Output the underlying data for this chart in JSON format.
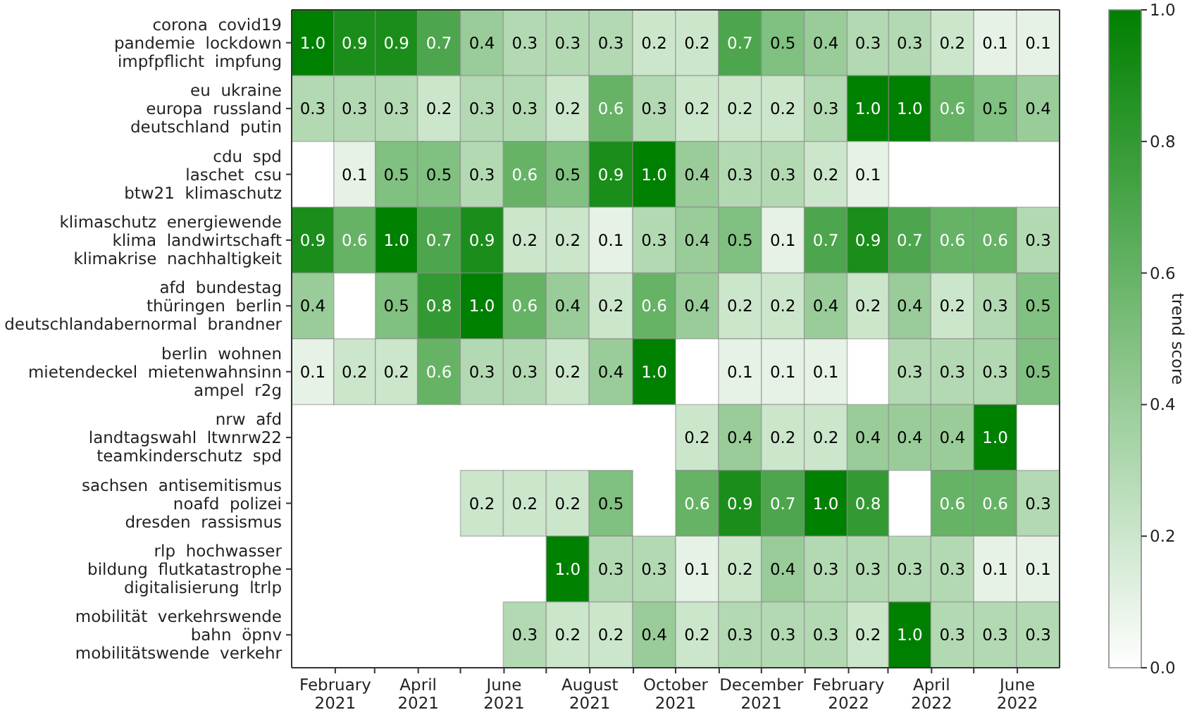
{
  "chart_data": {
    "type": "heatmap",
    "clabel": "trend score",
    "data_labels": true,
    "x": [
      "2021-01-16",
      "2021-02-15",
      "2021-03-16",
      "2021-04-16",
      "2021-05-16",
      "2021-06-16",
      "2021-07-16",
      "2021-08-16",
      "2021-09-16",
      "2021-10-16",
      "2021-11-16",
      "2021-12-16",
      "2022-01-16",
      "2022-02-15",
      "2022-03-16",
      "2022-04-16",
      "2022-05-16",
      "2022-06-16"
    ],
    "xlim": [
      "2021-01-01",
      "2022-07-01"
    ],
    "cell_labels": [
      [
        "1.0",
        "0.9",
        "0.9",
        "0.7",
        "0.4",
        "0.3",
        "0.3",
        "0.3",
        "0.2",
        "0.2",
        "0.7",
        "0.5",
        "0.4",
        "0.3",
        "0.3",
        "0.2",
        "0.1",
        "0.1"
      ],
      [
        "0.3",
        "0.3",
        "0.3",
        "0.2",
        "0.3",
        "0.3",
        "0.2",
        "0.6",
        "0.3",
        "0.2",
        "0.2",
        "0.2",
        "0.3",
        "1.0",
        "1.0",
        "0.6",
        "0.5",
        "0.4"
      ],
      [
        null,
        "0.1",
        "0.5",
        "0.5",
        "0.3",
        "0.6",
        "0.5",
        "0.9",
        "1.0",
        "0.4",
        "0.3",
        "0.3",
        "0.2",
        "0.1",
        null,
        null,
        null,
        null
      ],
      [
        "0.9",
        "0.6",
        "1.0",
        "0.7",
        "0.9",
        "0.2",
        "0.2",
        "0.1",
        "0.3",
        "0.4",
        "0.5",
        "0.1",
        "0.7",
        "0.9",
        "0.7",
        "0.6",
        "0.6",
        "0.3"
      ],
      [
        "0.4",
        null,
        "0.5",
        "0.8",
        "1.0",
        "0.6",
        "0.4",
        "0.2",
        "0.6",
        "0.4",
        "0.2",
        "0.2",
        "0.4",
        "0.2",
        "0.4",
        "0.2",
        "0.3",
        "0.5"
      ],
      [
        "0.1",
        "0.2",
        "0.2",
        "0.6",
        "0.3",
        "0.3",
        "0.2",
        "0.4",
        "1.0",
        null,
        "0.1",
        "0.1",
        "0.1",
        null,
        "0.3",
        "0.3",
        "0.3",
        "0.5"
      ],
      [
        null,
        null,
        null,
        null,
        null,
        null,
        null,
        null,
        null,
        "0.2",
        "0.4",
        "0.2",
        "0.2",
        "0.4",
        "0.4",
        "0.4",
        "1.0",
        null
      ],
      [
        null,
        null,
        null,
        null,
        "0.2",
        "0.2",
        "0.2",
        "0.5",
        null,
        "0.6",
        "0.9",
        "0.7",
        "1.0",
        "0.8",
        null,
        "0.6",
        "0.6",
        "0.3"
      ],
      [
        null,
        null,
        null,
        null,
        null,
        null,
        "1.0",
        "0.3",
        "0.3",
        "0.1",
        "0.2",
        "0.4",
        "0.3",
        "0.3",
        "0.3",
        "0.3",
        "0.1",
        "0.1"
      ],
      [
        null,
        null,
        null,
        null,
        null,
        "0.3",
        "0.2",
        "0.2",
        "0.4",
        "0.2",
        "0.3",
        "0.3",
        "0.3",
        "0.2",
        "1.0",
        "0.3",
        "0.3",
        "0.3"
      ]
    ],
    "xticks": [
      {
        "value": "2021-02-01",
        "label": "February\n2021"
      },
      {
        "value": "2021-03-01",
        "label": null
      },
      {
        "value": "2021-04-01",
        "label": "April\n2021"
      },
      {
        "value": "2021-05-01",
        "label": null
      },
      {
        "value": "2021-06-01",
        "label": "June\n2021"
      },
      {
        "value": "2021-07-01",
        "label": null
      },
      {
        "value": "2021-08-01",
        "label": "August\n2021"
      },
      {
        "value": "2021-09-01",
        "label": null
      },
      {
        "value": "2021-10-01",
        "label": "October\n2021"
      },
      {
        "value": "2021-11-01",
        "label": null
      },
      {
        "value": "2021-12-01",
        "label": "December\n2021"
      },
      {
        "value": "2022-01-01",
        "label": null
      },
      {
        "value": "2022-02-01",
        "label": "February\n2022"
      },
      {
        "value": "2022-03-01",
        "label": null
      },
      {
        "value": "2022-04-01",
        "label": "April\n2022"
      },
      {
        "value": "2022-05-01",
        "label": null
      },
      {
        "value": "2022-06-01",
        "label": "June\n2022"
      }
    ],
    "y_categories": [
      "corona  covid19\npandemie  lockdown\nimpfpflicht  impfung",
      "eu  ukraine\neuropa  russland\ndeutschland  putin",
      "cdu  spd\nlaschet  csu\nbtw21  klimaschutz",
      "klimaschutz  energiewende\nklima  landwirtschaft\nklimakrise  nachhaltigkeit",
      "afd  bundestag\nthüringen  berlin\ndeutschlandabernormal  brandner",
      "berlin  wohnen\nmietendeckel  mietenwahnsinn\nampel  r2g",
      "nrw  afd\nlandtagswahl  ltwnrw22\nteamkinderschutz  spd",
      "sachsen  antisemitismus\nnoafd  polizei\ndresden  rassismus",
      "rlp  hochwasser\nbildung  flutkatastrophe\ndigitalisierung  ltrlp",
      "mobilität  verkehrswende\nbahn  öpnv\nmobilitätswende  verkehr"
    ],
    "cells": [
      [
        1.0,
        0.9,
        0.9,
        0.7,
        0.4,
        0.3,
        0.3,
        0.3,
        0.2,
        0.2,
        0.7,
        0.5,
        0.4,
        0.3,
        0.3,
        0.2,
        0.1,
        0.1
      ],
      [
        0.3,
        0.3,
        0.3,
        0.2,
        0.3,
        0.3,
        0.2,
        0.6,
        0.3,
        0.2,
        0.2,
        0.2,
        0.3,
        1.0,
        1.0,
        0.6,
        0.5,
        0.4
      ],
      [
        null,
        0.1,
        0.5,
        0.5,
        0.3,
        0.6,
        0.5,
        0.9,
        1.0,
        0.4,
        0.3,
        0.3,
        0.2,
        0.1,
        null,
        null,
        null,
        null
      ],
      [
        0.9,
        0.6,
        1.0,
        0.7,
        0.9,
        0.2,
        0.2,
        0.1,
        0.3,
        0.4,
        0.5,
        0.1,
        0.7,
        0.9,
        0.7,
        0.6,
        0.6,
        0.3
      ],
      [
        0.4,
        null,
        0.5,
        0.8,
        1.0,
        0.6,
        0.4,
        0.2,
        0.6,
        0.4,
        0.2,
        0.2,
        0.4,
        0.2,
        0.4,
        0.2,
        0.3,
        0.5
      ],
      [
        0.1,
        0.2,
        0.2,
        0.6,
        0.3,
        0.3,
        0.2,
        0.4,
        1.0,
        null,
        0.1,
        0.1,
        0.1,
        null,
        0.3,
        0.3,
        0.3,
        0.5
      ],
      [
        null,
        null,
        null,
        null,
        null,
        null,
        null,
        null,
        null,
        0.2,
        0.4,
        0.2,
        0.2,
        0.4,
        0.4,
        0.4,
        1.0,
        null
      ],
      [
        null,
        null,
        null,
        null,
        0.2,
        0.2,
        0.2,
        0.5,
        null,
        0.6,
        0.9,
        0.7,
        1.0,
        0.8,
        null,
        0.6,
        0.6,
        0.3
      ],
      [
        null,
        null,
        null,
        null,
        null,
        null,
        1.0,
        0.3,
        0.3,
        0.1,
        0.2,
        0.4,
        0.3,
        0.3,
        0.3,
        0.3,
        0.1,
        0.1
      ],
      [
        null,
        null,
        null,
        null,
        null,
        0.3,
        0.2,
        0.2,
        0.4,
        0.2,
        0.3,
        0.3,
        0.3,
        0.2,
        1.0,
        0.3,
        0.3,
        0.3
      ]
    ],
    "clim": [
      0,
      1
    ],
    "cticks": [
      {
        "value": 0,
        "label": "0.0"
      },
      {
        "value": 0.2,
        "label": "0.2"
      },
      {
        "value": 0.4,
        "label": "0.4"
      },
      {
        "value": 0.6,
        "label": "0.6"
      },
      {
        "value": 0.8,
        "label": "0.8"
      },
      {
        "value": 1,
        "label": "1.0"
      }
    ],
    "colors": [
      "#ffffff",
      "#008000"
    ]
  }
}
